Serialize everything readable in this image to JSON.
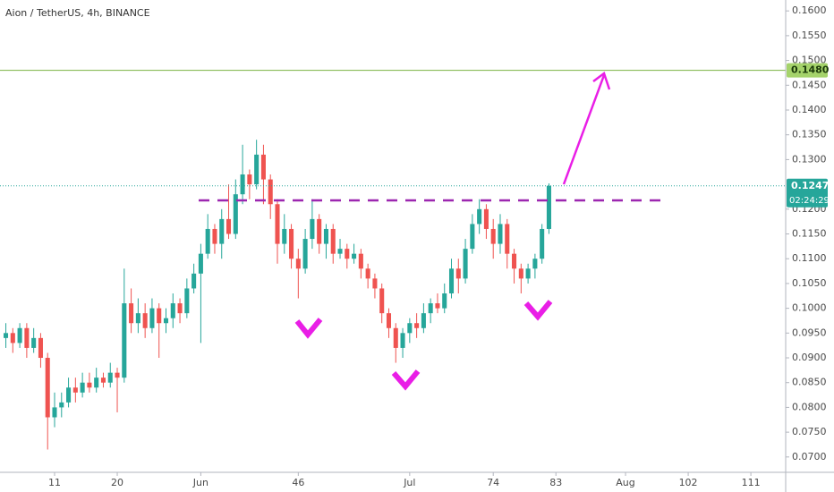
{
  "chart_data": {
    "type": "candlestick",
    "title": "Aion / TetherUS, 4h, BINANCE",
    "up_color": "#26a69a",
    "down_color": "#ef5350",
    "xlim": [
      3.16,
      116
    ],
    "ylim": [
      0.0669,
      0.1622
    ],
    "xticks": [
      11,
      20,
      {
        "value": 32,
        "label": "Jun"
      },
      46,
      {
        "value": 62,
        "label": "Jul"
      },
      74,
      83,
      {
        "value": 93,
        "label": "Aug"
      },
      102,
      111
    ],
    "yticks": [
      {
        "value": 0.07,
        "label": "0.0700"
      },
      {
        "value": 0.075,
        "label": "0.0750"
      },
      {
        "value": 0.08,
        "label": "0.0800"
      },
      {
        "value": 0.085,
        "label": "0.0850"
      },
      {
        "value": 0.09,
        "label": "0.0900"
      },
      {
        "value": 0.095,
        "label": "0.0950"
      },
      {
        "value": 0.1,
        "label": "0.1000"
      },
      {
        "value": 0.105,
        "label": "0.1050"
      },
      {
        "value": 0.11,
        "label": "0.1100"
      },
      {
        "value": 0.115,
        "label": "0.1150"
      },
      {
        "value": 0.12,
        "label": "0.1200"
      },
      {
        "value": 0.13,
        "label": "0.1300"
      },
      {
        "value": 0.135,
        "label": "0.1350"
      },
      {
        "value": 0.14,
        "label": "0.1400"
      },
      {
        "value": 0.145,
        "label": "0.1450"
      },
      {
        "value": 0.15,
        "label": "0.1500"
      },
      {
        "value": 0.155,
        "label": "0.1550"
      },
      {
        "value": 0.16,
        "label": "0.1600"
      }
    ],
    "x": [
      4,
      5,
      6,
      7,
      8,
      9,
      10,
      11,
      12,
      13,
      14,
      15,
      16,
      17,
      18,
      19,
      20,
      21,
      22,
      23,
      24,
      25,
      26,
      27,
      28,
      29,
      30,
      31,
      32,
      33,
      34,
      35,
      36,
      37,
      38,
      39,
      40,
      41,
      42,
      43,
      44,
      45,
      46,
      47,
      48,
      49,
      50,
      51,
      52,
      53,
      54,
      55,
      56,
      57,
      58,
      59,
      60,
      61,
      62,
      63,
      64,
      65,
      66,
      67,
      68,
      69,
      70,
      71,
      72,
      73,
      74,
      75,
      76,
      77,
      78,
      79,
      80,
      81,
      82
    ],
    "open": [
      0.094,
      0.095,
      0.093,
      0.096,
      0.092,
      0.094,
      0.09,
      0.078,
      0.08,
      0.081,
      0.084,
      0.083,
      0.085,
      0.084,
      0.086,
      0.085,
      0.087,
      0.086,
      0.101,
      0.097,
      0.099,
      0.096,
      0.1,
      0.097,
      0.098,
      0.101,
      0.099,
      0.104,
      0.107,
      0.111,
      0.116,
      0.113,
      0.118,
      0.115,
      0.123,
      0.127,
      0.125,
      0.131,
      0.126,
      0.121,
      0.113,
      0.116,
      0.11,
      0.108,
      0.114,
      0.118,
      0.113,
      0.116,
      0.111,
      0.112,
      0.11,
      0.111,
      0.108,
      0.106,
      0.104,
      0.099,
      0.096,
      0.092,
      0.095,
      0.097,
      0.096,
      0.099,
      0.101,
      0.1,
      0.103,
      0.108,
      0.106,
      0.112,
      0.117,
      0.12,
      0.116,
      0.113,
      0.117,
      0.111,
      0.108,
      0.106,
      0.108,
      0.11,
      0.116
    ],
    "high": [
      0.097,
      0.096,
      0.097,
      0.097,
      0.096,
      0.095,
      0.091,
      0.083,
      0.083,
      0.086,
      0.086,
      0.087,
      0.087,
      0.088,
      0.087,
      0.089,
      0.088,
      0.108,
      0.104,
      0.102,
      0.101,
      0.102,
      0.101,
      0.1,
      0.103,
      0.102,
      0.106,
      0.109,
      0.113,
      0.119,
      0.117,
      0.12,
      0.125,
      0.126,
      0.133,
      0.128,
      0.134,
      0.133,
      0.127,
      0.122,
      0.119,
      0.117,
      0.112,
      0.116,
      0.122,
      0.119,
      0.117,
      0.117,
      0.114,
      0.113,
      0.113,
      0.112,
      0.109,
      0.107,
      0.105,
      0.1,
      0.097,
      0.096,
      0.098,
      0.099,
      0.101,
      0.102,
      0.103,
      0.105,
      0.11,
      0.11,
      0.114,
      0.119,
      0.122,
      0.121,
      0.118,
      0.119,
      0.118,
      0.112,
      0.109,
      0.109,
      0.111,
      0.117,
      0.1252
    ],
    "low": [
      0.092,
      0.091,
      0.092,
      0.09,
      0.091,
      0.088,
      0.0715,
      0.076,
      0.078,
      0.08,
      0.081,
      0.082,
      0.083,
      0.083,
      0.084,
      0.084,
      0.079,
      0.085,
      0.095,
      0.095,
      0.094,
      0.095,
      0.09,
      0.095,
      0.096,
      0.097,
      0.098,
      0.103,
      0.093,
      0.11,
      0.111,
      0.11,
      0.114,
      0.114,
      0.121,
      0.122,
      0.124,
      0.121,
      0.118,
      0.109,
      0.111,
      0.108,
      0.102,
      0.107,
      0.112,
      0.111,
      0.11,
      0.109,
      0.11,
      0.108,
      0.109,
      0.106,
      0.104,
      0.102,
      0.097,
      0.094,
      0.089,
      0.09,
      0.093,
      0.094,
      0.095,
      0.097,
      0.099,
      0.099,
      0.102,
      0.103,
      0.105,
      0.111,
      0.115,
      0.114,
      0.11,
      0.111,
      0.108,
      0.105,
      0.103,
      0.105,
      0.106,
      0.109,
      0.115
    ],
    "close": [
      0.095,
      0.093,
      0.096,
      0.092,
      0.094,
      0.09,
      0.078,
      0.08,
      0.081,
      0.084,
      0.083,
      0.085,
      0.084,
      0.086,
      0.085,
      0.087,
      0.086,
      0.101,
      0.097,
      0.099,
      0.096,
      0.1,
      0.097,
      0.098,
      0.101,
      0.099,
      0.104,
      0.107,
      0.111,
      0.116,
      0.113,
      0.118,
      0.115,
      0.123,
      0.127,
      0.125,
      0.131,
      0.126,
      0.121,
      0.113,
      0.116,
      0.11,
      0.108,
      0.114,
      0.118,
      0.113,
      0.116,
      0.111,
      0.112,
      0.11,
      0.111,
      0.108,
      0.106,
      0.104,
      0.099,
      0.096,
      0.092,
      0.095,
      0.097,
      0.096,
      0.099,
      0.101,
      0.1,
      0.103,
      0.108,
      0.106,
      0.112,
      0.117,
      0.12,
      0.116,
      0.113,
      0.117,
      0.111,
      0.108,
      0.106,
      0.108,
      0.11,
      0.116,
      0.1247
    ],
    "price_lines": [
      {
        "value": 0.148,
        "label": "0.1480",
        "color": "#7cb342",
        "box_color": "#a5d36b",
        "text_color": "#1b3a0a"
      },
      {
        "value": 0.1247,
        "label": "0.1247",
        "color": "#26a69a",
        "box_color": "#26a69a",
        "text_color": "#ffffff",
        "countdown": "02:24:29"
      }
    ]
  }
}
